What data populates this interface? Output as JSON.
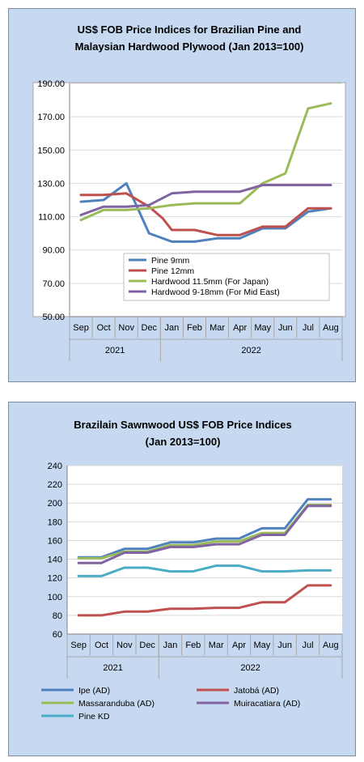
{
  "chart_data": [
    {
      "type": "line",
      "title_lines": [
        "US$ FOB Price Indices for Brazilian  Pine and",
        "Malaysian Hardwood Plywood (Jan 2013=100)"
      ],
      "categories": [
        "Sep",
        "Oct",
        "Nov",
        "Dec",
        "Jan",
        "Feb",
        "Mar",
        "Apr",
        "May",
        "Jun",
        "Jul",
        "Aug"
      ],
      "year_groups": [
        {
          "label": "2021",
          "span": 4
        },
        {
          "label": "2022",
          "span": 8
        }
      ],
      "ylim": [
        50,
        190
      ],
      "y_ticks": [
        "50.00",
        "70.00",
        "90.00",
        "110.00",
        "130.00",
        "150.00",
        "170.00",
        "190.00"
      ],
      "grid": "horizontal",
      "legend_position": "bottom-right-inside",
      "series": [
        {
          "name": "Pine 9mm",
          "color": "#4f81bd",
          "points": [
            [
              0,
              119
            ],
            [
              1,
              120
            ],
            [
              2,
              130
            ],
            [
              3,
              100
            ],
            [
              4,
              95
            ],
            [
              5,
              95
            ],
            [
              6,
              97
            ],
            [
              7,
              97
            ],
            [
              8,
              103
            ],
            [
              9,
              103
            ],
            [
              10,
              113
            ],
            [
              11,
              115
            ]
          ]
        },
        {
          "name": "Pine 12mm",
          "color": "#c0504d",
          "points": [
            [
              0,
              123
            ],
            [
              1,
              123
            ],
            [
              2,
              124
            ],
            [
              3,
              116
            ],
            [
              3.6,
              109
            ],
            [
              4,
              102
            ],
            [
              5,
              102
            ],
            [
              6,
              99
            ],
            [
              7,
              99
            ],
            [
              8,
              104
            ],
            [
              9,
              104
            ],
            [
              10,
              115
            ],
            [
              11,
              115
            ]
          ]
        },
        {
          "name": "Hardwood 11.5mm (For Japan)",
          "color": "#9bbb59",
          "points": [
            [
              0,
              108
            ],
            [
              1,
              114
            ],
            [
              2,
              114
            ],
            [
              3,
              115
            ],
            [
              4,
              117
            ],
            [
              5,
              118
            ],
            [
              6,
              118
            ],
            [
              7,
              118
            ],
            [
              8,
              130
            ],
            [
              9,
              136
            ],
            [
              10,
              175
            ],
            [
              11,
              178
            ]
          ]
        },
        {
          "name": "Hardwood 9-18mm (For Mid East)",
          "color": "#8064a2",
          "points": [
            [
              0,
              111
            ],
            [
              1,
              116
            ],
            [
              2,
              116
            ],
            [
              3,
              117
            ],
            [
              4,
              124
            ],
            [
              5,
              125
            ],
            [
              6,
              125
            ],
            [
              7,
              125
            ],
            [
              8,
              129
            ],
            [
              9,
              129
            ],
            [
              10,
              129
            ],
            [
              11,
              129
            ]
          ]
        }
      ]
    },
    {
      "type": "line",
      "title_lines": [
        "Brazilain Sawnwood US$ FOB Price Indices",
        "(Jan 2013=100)"
      ],
      "categories": [
        "Sep",
        "Oct",
        "Nov",
        "Dec",
        "Jan",
        "Feb",
        "Mar",
        "Apr",
        "May",
        "Jun",
        "Jul",
        "Aug"
      ],
      "year_groups": [
        {
          "label": "2021",
          "span": 4
        },
        {
          "label": "2022",
          "span": 8
        }
      ],
      "ylim": [
        60,
        240
      ],
      "y_ticks": [
        "60",
        "80",
        "100",
        "120",
        "140",
        "160",
        "180",
        "200",
        "220",
        "240"
      ],
      "grid": "horizontal",
      "legend_position": "bottom",
      "series": [
        {
          "name": "Ipe (AD)",
          "color": "#4f81bd",
          "points": [
            [
              0,
              142
            ],
            [
              1,
              142
            ],
            [
              2,
              151
            ],
            [
              3,
              151
            ],
            [
              4,
              158
            ],
            [
              5,
              158
            ],
            [
              6,
              162
            ],
            [
              7,
              162
            ],
            [
              8,
              173
            ],
            [
              9,
              173
            ],
            [
              10,
              204
            ],
            [
              11,
              204
            ]
          ]
        },
        {
          "name": "Jatobá (AD)",
          "color": "#c0504d",
          "points": [
            [
              0,
              80
            ],
            [
              1,
              80
            ],
            [
              2,
              84
            ],
            [
              3,
              84
            ],
            [
              4,
              87
            ],
            [
              5,
              87
            ],
            [
              6,
              88
            ],
            [
              7,
              88
            ],
            [
              8,
              94
            ],
            [
              9,
              94
            ],
            [
              10,
              112
            ],
            [
              11,
              112
            ]
          ]
        },
        {
          "name": "Massaranduba (AD)",
          "color": "#9bbb59",
          "points": [
            [
              0,
              141
            ],
            [
              1,
              141
            ],
            [
              2,
              148
            ],
            [
              3,
              148
            ],
            [
              4,
              155
            ],
            [
              5,
              155
            ],
            [
              6,
              159
            ],
            [
              7,
              159
            ],
            [
              8,
              168
            ],
            [
              9,
              168
            ],
            [
              10,
              198
            ],
            [
              11,
              198
            ]
          ]
        },
        {
          "name": "Muiracatiara (AD)",
          "color": "#8064a2",
          "points": [
            [
              0,
              136
            ],
            [
              1,
              136
            ],
            [
              2,
              147
            ],
            [
              3,
              147
            ],
            [
              4,
              153
            ],
            [
              5,
              153
            ],
            [
              6,
              156
            ],
            [
              7,
              156
            ],
            [
              8,
              166
            ],
            [
              9,
              166
            ],
            [
              10,
              197
            ],
            [
              11,
              197
            ]
          ]
        },
        {
          "name": "Pine KD",
          "color": "#4bacc6",
          "points": [
            [
              0,
              122
            ],
            [
              1,
              122
            ],
            [
              2,
              131
            ],
            [
              3,
              131
            ],
            [
              4,
              127
            ],
            [
              5,
              127
            ],
            [
              6,
              133
            ],
            [
              7,
              133
            ],
            [
              8,
              127
            ],
            [
              9,
              127
            ],
            [
              10,
              128
            ],
            [
              11,
              128
            ]
          ]
        }
      ]
    }
  ]
}
